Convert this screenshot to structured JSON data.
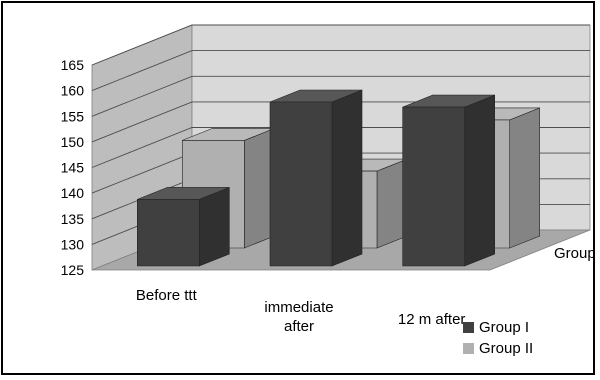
{
  "chart_data": {
    "type": "bar",
    "subtype": "3d-column-series-depth",
    "title": "",
    "xlabel": "",
    "ylabel": "",
    "ylim": [
      125,
      165
    ],
    "ytick_step": 5,
    "yticks": [
      "165",
      "160",
      "155",
      "150",
      "145",
      "140",
      "135",
      "130",
      "125"
    ],
    "categories": [
      "Before ttt",
      "immediate after",
      "12 m after"
    ],
    "category_lines": [
      [
        "Before ttt"
      ],
      [
        "immediate",
        "after"
      ],
      [
        "12 m after"
      ]
    ],
    "series": [
      {
        "name": "Group I",
        "values": [
          138,
          157,
          156
        ],
        "color": "#404040"
      },
      {
        "name": "Group II",
        "values": [
          146,
          140,
          150
        ],
        "color": "#b0b0b0"
      }
    ],
    "depth_labels": [
      "Group II",
      "Group I"
    ],
    "legend": {
      "position": "bottom-right",
      "entries": [
        "Group I",
        "Group II"
      ]
    },
    "grid": true
  }
}
